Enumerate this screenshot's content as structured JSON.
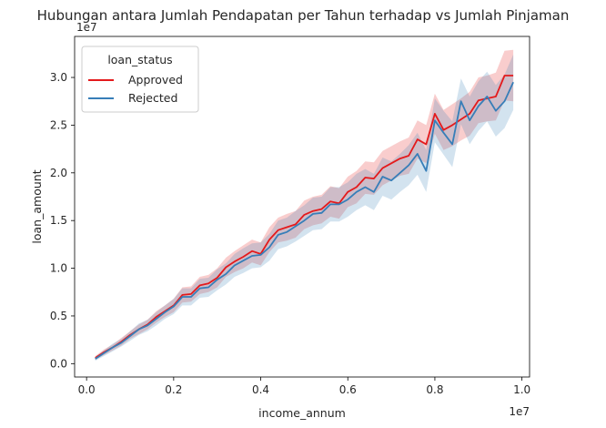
{
  "chart_data": {
    "type": "line",
    "title": "Hubungan antara Jumlah Pendapatan per Tahun terhadap vs Jumlah Pinjaman",
    "xlabel": "income_annum",
    "ylabel": "loan_amount",
    "x_offset_label": "1e7",
    "y_offset_label": "1e7",
    "xlim": [
      -0.0275,
      1.0175
    ],
    "ylim": [
      -0.14,
      3.43
    ],
    "x_ticks": [
      0.0,
      0.2,
      0.4,
      0.6,
      0.8,
      1.0
    ],
    "x_tick_labels": [
      "0.0",
      "0.2",
      "0.4",
      "0.6",
      "0.8",
      "1.0"
    ],
    "y_ticks": [
      0.0,
      0.5,
      1.0,
      1.5,
      2.0,
      2.5,
      3.0
    ],
    "y_tick_labels": [
      "0.0",
      "0.5",
      "1.0",
      "1.5",
      "2.0",
      "2.5",
      "3.0"
    ],
    "grid": false,
    "legend": {
      "title": "loan_status",
      "placement": "top-left",
      "entries": [
        "Approved",
        "Rejected"
      ]
    },
    "x": [
      0.02,
      0.04,
      0.06,
      0.08,
      0.1,
      0.12,
      0.14,
      0.16,
      0.18,
      0.2,
      0.22,
      0.24,
      0.26,
      0.28,
      0.3,
      0.32,
      0.34,
      0.36,
      0.38,
      0.4,
      0.42,
      0.44,
      0.46,
      0.48,
      0.5,
      0.52,
      0.54,
      0.56,
      0.58,
      0.6,
      0.62,
      0.64,
      0.66,
      0.68,
      0.7,
      0.72,
      0.74,
      0.76,
      0.78,
      0.8,
      0.82,
      0.84,
      0.86,
      0.88,
      0.9,
      0.92,
      0.94,
      0.96,
      0.98
    ],
    "series": [
      {
        "name": "Approved",
        "color": "#e41a1c",
        "values": [
          0.06,
          0.12,
          0.17,
          0.23,
          0.3,
          0.36,
          0.41,
          0.49,
          0.55,
          0.61,
          0.72,
          0.73,
          0.82,
          0.84,
          0.9,
          1.01,
          1.07,
          1.12,
          1.18,
          1.15,
          1.3,
          1.4,
          1.43,
          1.46,
          1.56,
          1.6,
          1.62,
          1.7,
          1.68,
          1.8,
          1.85,
          1.95,
          1.94,
          2.05,
          2.1,
          2.15,
          2.18,
          2.35,
          2.3,
          2.62,
          2.45,
          2.5,
          2.56,
          2.62,
          2.76,
          2.78,
          2.8,
          3.02,
          3.02
        ],
        "ci_half": [
          0.02,
          0.03,
          0.03,
          0.04,
          0.04,
          0.05,
          0.05,
          0.06,
          0.06,
          0.07,
          0.08,
          0.08,
          0.09,
          0.09,
          0.1,
          0.1,
          0.11,
          0.12,
          0.12,
          0.12,
          0.13,
          0.13,
          0.14,
          0.14,
          0.15,
          0.15,
          0.15,
          0.16,
          0.16,
          0.16,
          0.17,
          0.17,
          0.17,
          0.18,
          0.18,
          0.18,
          0.19,
          0.2,
          0.2,
          0.21,
          0.21,
          0.22,
          0.22,
          0.23,
          0.24,
          0.24,
          0.25,
          0.26,
          0.27
        ]
      },
      {
        "name": "Rejected",
        "color": "#377eb8",
        "values": [
          0.05,
          0.11,
          0.17,
          0.22,
          0.29,
          0.36,
          0.4,
          0.47,
          0.54,
          0.6,
          0.7,
          0.7,
          0.79,
          0.8,
          0.88,
          0.94,
          1.03,
          1.08,
          1.13,
          1.14,
          1.22,
          1.35,
          1.38,
          1.44,
          1.5,
          1.57,
          1.58,
          1.67,
          1.67,
          1.72,
          1.8,
          1.85,
          1.8,
          1.96,
          1.92,
          2.0,
          2.08,
          2.2,
          2.02,
          2.55,
          2.42,
          2.3,
          2.75,
          2.55,
          2.7,
          2.8,
          2.65,
          2.75,
          2.95
        ],
        "ci_half": [
          0.02,
          0.03,
          0.04,
          0.04,
          0.05,
          0.06,
          0.06,
          0.07,
          0.07,
          0.08,
          0.09,
          0.09,
          0.1,
          0.1,
          0.11,
          0.11,
          0.12,
          0.13,
          0.13,
          0.13,
          0.14,
          0.15,
          0.15,
          0.16,
          0.16,
          0.17,
          0.17,
          0.18,
          0.18,
          0.18,
          0.19,
          0.19,
          0.19,
          0.2,
          0.2,
          0.2,
          0.21,
          0.22,
          0.22,
          0.23,
          0.23,
          0.24,
          0.24,
          0.25,
          0.26,
          0.26,
          0.27,
          0.28,
          0.29
        ]
      }
    ]
  }
}
